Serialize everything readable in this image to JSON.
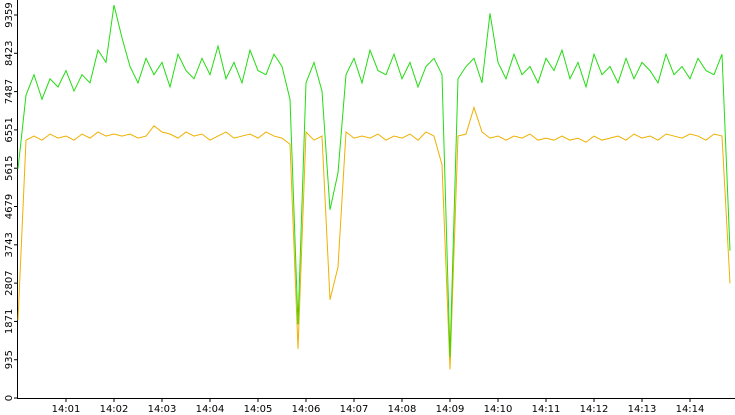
{
  "chart_data": {
    "type": "line",
    "categories": [
      null,
      null,
      null,
      null,
      null,
      null,
      "14:01",
      null,
      null,
      null,
      null,
      null,
      "14:02",
      null,
      null,
      null,
      null,
      null,
      "14:03",
      null,
      null,
      null,
      null,
      null,
      "14:04",
      null,
      null,
      null,
      null,
      null,
      "14:05",
      null,
      null,
      null,
      null,
      null,
      "14:06",
      null,
      null,
      null,
      null,
      null,
      "14:07",
      null,
      null,
      null,
      null,
      null,
      "14:08",
      null,
      null,
      null,
      null,
      null,
      "14:09",
      null,
      null,
      null,
      null,
      null,
      "14:10",
      null,
      null,
      null,
      null,
      null,
      "14:11",
      null,
      null,
      null,
      null,
      null,
      "14:12",
      null,
      null,
      null,
      null,
      null,
      "14:13",
      null,
      null,
      null,
      null,
      null,
      "14:14",
      null,
      null,
      null,
      null,
      null
    ],
    "series": [
      {
        "color": "#22dd11",
        "values": [
          5600,
          7400,
          7900,
          7300,
          7800,
          7600,
          8000,
          7500,
          7900,
          7700,
          8500,
          8200,
          9600,
          8800,
          8100,
          7700,
          8300,
          7900,
          8200,
          7600,
          8400,
          8000,
          7800,
          8300,
          7900,
          8600,
          7800,
          8200,
          7700,
          8500,
          8000,
          7900,
          8400,
          8100,
          7300,
          1800,
          7700,
          8200,
          7500,
          4600,
          5500,
          7900,
          8300,
          7700,
          8500,
          8000,
          7900,
          8400,
          7800,
          8200,
          7600,
          8100,
          8300,
          7900,
          1000,
          7800,
          8100,
          8300,
          7700,
          9400,
          8200,
          7800,
          8400,
          7900,
          8100,
          7700,
          8300,
          8000,
          8500,
          7800,
          8200,
          7600,
          8400,
          7900,
          8100,
          7700,
          8300,
          7800,
          8200,
          8000,
          7700,
          8400,
          7900,
          8100,
          7800,
          8300,
          8000,
          7900,
          8400,
          3600
        ]
      },
      {
        "color": "#f0b000",
        "values": [
          1900,
          6300,
          6400,
          6300,
          6450,
          6350,
          6400,
          6300,
          6450,
          6350,
          6500,
          6400,
          6450,
          6400,
          6450,
          6350,
          6400,
          6650,
          6500,
          6450,
          6350,
          6500,
          6400,
          6450,
          6300,
          6400,
          6500,
          6350,
          6400,
          6450,
          6350,
          6500,
          6400,
          6350,
          6200,
          1200,
          6500,
          6300,
          6400,
          2400,
          3200,
          6500,
          6350,
          6400,
          6350,
          6450,
          6300,
          6400,
          6350,
          6450,
          6300,
          6500,
          6400,
          5700,
          700,
          6400,
          6450,
          7100,
          6500,
          6350,
          6400,
          6300,
          6400,
          6350,
          6450,
          6300,
          6350,
          6300,
          6400,
          6300,
          6350,
          6250,
          6400,
          6300,
          6350,
          6400,
          6300,
          6450,
          6350,
          6400,
          6300,
          6450,
          6400,
          6350,
          6450,
          6400,
          6300,
          6450,
          6400,
          2800
        ]
      }
    ],
    "ylim": [
      0,
      9725
    ],
    "yticks": [
      0,
      935,
      1871,
      2807,
      3743,
      4679,
      5615,
      6551,
      7487,
      8423,
      9359
    ]
  }
}
